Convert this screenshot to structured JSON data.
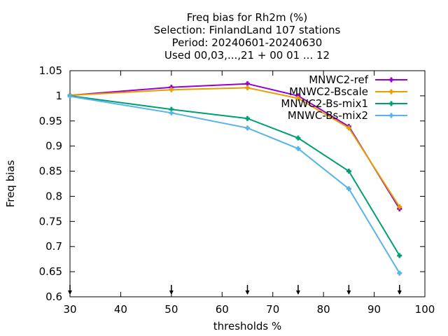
{
  "chart_data": {
    "type": "line",
    "title_lines": [
      "Freq bias  for Rh2m (%)",
      "Selection: FinlandLand    107 stations",
      "Period: 20240601-20240630",
      "Used 00,03,...,21 + 00 01 ... 12"
    ],
    "xlabel": "thresholds %",
    "ylabel": "Freq bias",
    "xlim": [
      30,
      100
    ],
    "ylim": [
      0.6,
      1.05
    ],
    "xticks": [
      30,
      40,
      50,
      60,
      70,
      80,
      90,
      100
    ],
    "yticks": [
      0.6,
      0.65,
      0.7,
      0.75,
      0.8,
      0.85,
      0.9,
      0.95,
      1,
      1.05
    ],
    "ytick_labels": [
      "0.6",
      "0.65",
      "0.7",
      "0.75",
      "0.8",
      "0.85",
      "0.9",
      "0.95",
      "1",
      "1.05"
    ],
    "threshold_arrows": [
      30,
      50,
      65,
      75,
      85,
      95
    ],
    "legend_position": "top-right",
    "grid": false,
    "x": [
      30,
      50,
      65,
      75,
      85,
      95
    ],
    "series": [
      {
        "name": "MNWC2-ref",
        "color": "#9400d3",
        "values": [
          1.001,
          1.017,
          1.024,
          1.0,
          0.939,
          0.775
        ]
      },
      {
        "name": "MNWC2-Bscale",
        "color": "#e69f00",
        "values": [
          1.001,
          1.012,
          1.016,
          0.995,
          0.936,
          0.779
        ]
      },
      {
        "name": "MNWC2-Bs-mix1",
        "color": "#009e73",
        "values": [
          1.0,
          0.973,
          0.955,
          0.916,
          0.85,
          0.682
        ]
      },
      {
        "name": "MNWC-Bs-mix2",
        "color": "#56b4e9",
        "values": [
          0.999,
          0.966,
          0.936,
          0.895,
          0.815,
          0.647
        ]
      }
    ]
  }
}
